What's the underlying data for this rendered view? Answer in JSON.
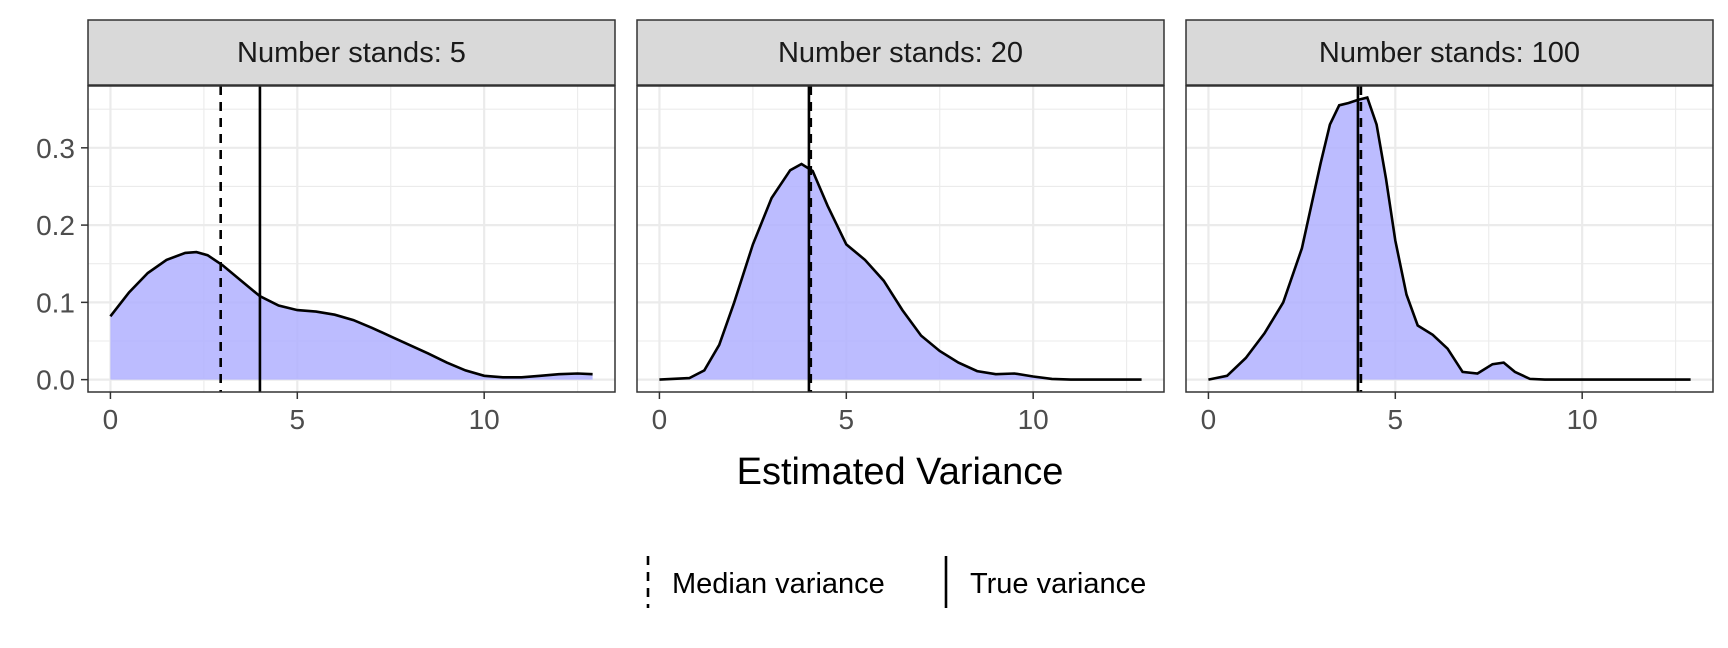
{
  "chart_data": [
    {
      "type": "area",
      "facet_label": "Number stands: 5",
      "xlim": [
        -0.6,
        13.5
      ],
      "ylim": [
        -0.016,
        0.38
      ],
      "x_ticks": [
        0,
        5,
        10
      ],
      "x_tick_labels": [
        "0",
        "5",
        "10"
      ],
      "y_ticks": [
        0.0,
        0.1,
        0.2,
        0.3
      ],
      "y_tick_labels": [
        "0.0",
        "0.1",
        "0.2",
        "0.3"
      ],
      "median_variance": 2.95,
      "true_variance": 4.0,
      "density": {
        "x": [
          0,
          0.5,
          1,
          1.5,
          2,
          2.3,
          2.6,
          3,
          3.5,
          4,
          4.5,
          5,
          5.5,
          6,
          6.5,
          7,
          7.5,
          8,
          8.5,
          9,
          9.5,
          10,
          10.5,
          11,
          11.5,
          12,
          12.5,
          12.9
        ],
        "y": [
          0.082,
          0.113,
          0.138,
          0.155,
          0.164,
          0.165,
          0.161,
          0.148,
          0.128,
          0.108,
          0.096,
          0.09,
          0.088,
          0.084,
          0.077,
          0.067,
          0.056,
          0.045,
          0.034,
          0.022,
          0.012,
          0.005,
          0.003,
          0.003,
          0.005,
          0.007,
          0.008,
          0.007
        ]
      }
    },
    {
      "type": "area",
      "facet_label": "Number stands: 20",
      "xlim": [
        -0.6,
        13.5
      ],
      "ylim": [
        -0.016,
        0.38
      ],
      "x_ticks": [
        0,
        5,
        10
      ],
      "x_tick_labels": [
        "0",
        "5",
        "10"
      ],
      "median_variance": 4.05,
      "true_variance": 4.0,
      "density": {
        "x": [
          0,
          0.8,
          1.2,
          1.6,
          2,
          2.5,
          3,
          3.5,
          3.8,
          4.1,
          4.5,
          5,
          5.5,
          6,
          6.5,
          7,
          7.5,
          8,
          8.5,
          9,
          9.5,
          10,
          10.5,
          11,
          12,
          12.9
        ],
        "y": [
          0,
          0.002,
          0.012,
          0.045,
          0.1,
          0.175,
          0.235,
          0.271,
          0.279,
          0.27,
          0.225,
          0.175,
          0.155,
          0.128,
          0.09,
          0.057,
          0.037,
          0.022,
          0.011,
          0.007,
          0.008,
          0.004,
          0.001,
          0,
          0,
          0
        ]
      }
    },
    {
      "type": "area",
      "facet_label": "Number stands: 100",
      "xlim": [
        -0.6,
        13.5
      ],
      "ylim": [
        -0.016,
        0.38
      ],
      "x_ticks": [
        0,
        5,
        10
      ],
      "x_tick_labels": [
        "0",
        "5",
        "10"
      ],
      "median_variance": 4.08,
      "true_variance": 4.0,
      "density": {
        "x": [
          0,
          0.5,
          1,
          1.5,
          2,
          2.5,
          3,
          3.25,
          3.5,
          3.75,
          4,
          4.25,
          4.5,
          4.75,
          5,
          5.3,
          5.6,
          6,
          6.4,
          6.8,
          7.2,
          7.6,
          7.9,
          8.2,
          8.6,
          9,
          10,
          11,
          12,
          12.9
        ],
        "y": [
          0,
          0.005,
          0.028,
          0.06,
          0.1,
          0.17,
          0.28,
          0.33,
          0.355,
          0.358,
          0.362,
          0.365,
          0.33,
          0.26,
          0.18,
          0.11,
          0.07,
          0.058,
          0.04,
          0.01,
          0.008,
          0.02,
          0.022,
          0.01,
          0.001,
          0,
          0,
          0,
          0,
          0
        ]
      }
    }
  ],
  "xlabel": "Estimated Variance",
  "legend": {
    "position": "bottom",
    "items": [
      {
        "label": "Median variance",
        "linetype": "dashed"
      },
      {
        "label": "True variance",
        "linetype": "solid"
      }
    ]
  },
  "colors": {
    "fill": "#b0b0ff",
    "line": "#000000",
    "strip_bg": "#d9d9d9",
    "grid": "#ebebeb"
  }
}
